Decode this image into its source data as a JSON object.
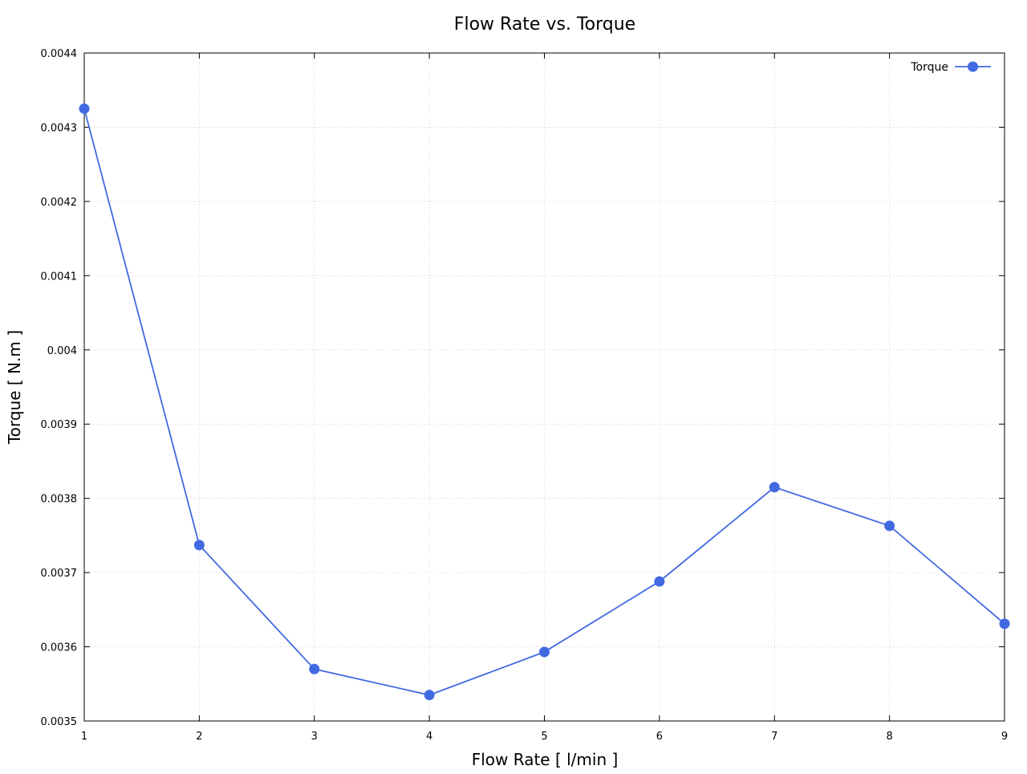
{
  "chart_data": {
    "type": "line",
    "title": "Flow Rate vs. Torque",
    "xlabel": "Flow Rate [ l/min ]",
    "ylabel": "Torque [ N.m ]",
    "xlim": [
      1,
      9
    ],
    "ylim": [
      0.0035,
      0.0044
    ],
    "x_ticks": [
      1,
      2,
      3,
      4,
      5,
      6,
      7,
      8,
      9
    ],
    "x_tick_labels": [
      "1",
      "2",
      "3",
      "4",
      "5",
      "6",
      "7",
      "8",
      "9"
    ],
    "y_ticks": [
      0.0035,
      0.0036,
      0.0037,
      0.0038,
      0.0039,
      0.004,
      0.0041,
      0.0042,
      0.0043,
      0.0044
    ],
    "y_tick_labels": [
      "0.0035",
      "0.0036",
      "0.0037",
      "0.0038",
      "0.0039",
      "0.004",
      "0.0041",
      "0.0042",
      "0.0043",
      "0.0044"
    ],
    "grid": true,
    "legend_position": "top-right",
    "series": [
      {
        "name": "Torque",
        "color": "#4169e1",
        "marker": "circle",
        "x": [
          1,
          2,
          3,
          4,
          5,
          6,
          7,
          8,
          9
        ],
        "y": [
          0.004325,
          0.003737,
          0.00357,
          0.003535,
          0.003593,
          0.003688,
          0.003815,
          0.003763,
          0.003631
        ]
      }
    ]
  }
}
